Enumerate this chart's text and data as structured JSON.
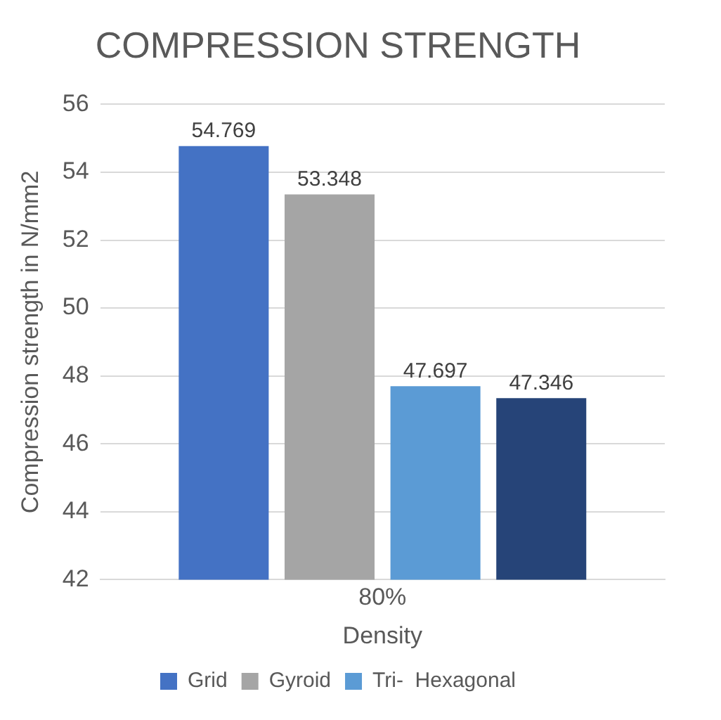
{
  "chart_data": {
    "type": "bar",
    "title": "COMPRESSION STRENGTH",
    "xlabel": "Density",
    "ylabel": "Compression strength in N/mm2",
    "categories": [
      "80%"
    ],
    "series": [
      {
        "name": "Grid",
        "color": "#4472c4",
        "values": [
          54.769
        ]
      },
      {
        "name": "Gyroid",
        "color": "#a5a5a5",
        "values": [
          53.348
        ]
      },
      {
        "name": "Tri-  Hexagonal",
        "color": "#5b9bd5",
        "values": [
          47.697
        ]
      },
      {
        "color": "#264478",
        "values": [
          47.346
        ]
      }
    ],
    "ylim": [
      42,
      56
    ],
    "yticks": [
      42,
      44,
      46,
      48,
      50,
      52,
      54,
      56
    ],
    "grid": "y",
    "legend": "bottom",
    "data_labels": true
  }
}
